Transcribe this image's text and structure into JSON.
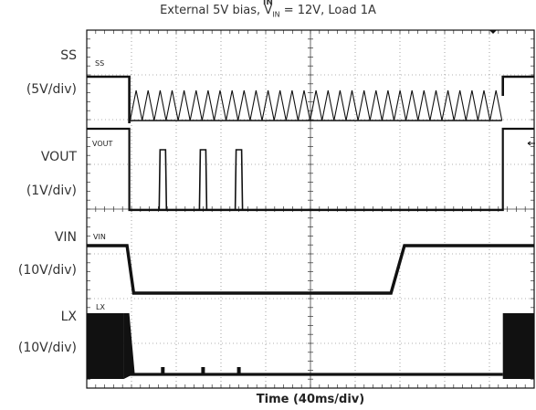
{
  "chart_data": {
    "type": "line",
    "title": "External 5V bias, V",
    "title_sub": "IN",
    "title_rest": " = 12V, Load 1A",
    "title_overline": "IN",
    "xlabel": "Time (40ms/div)",
    "x_divisions": 10,
    "y_divisions": 8,
    "grid": true,
    "channels": [
      {
        "name": "SS",
        "scale": "(5V/div)",
        "trace_label": "SS",
        "unit": "V"
      },
      {
        "name": "VOUT",
        "scale": "(1V/div)",
        "trace_label": "VOUT",
        "unit": "V"
      },
      {
        "name": "VIN",
        "scale": "(10V/div)",
        "trace_label": "VIN",
        "unit": "V"
      },
      {
        "name": "LX",
        "scale": "(10V/div)",
        "trace_label": "LX",
        "unit": "V"
      }
    ],
    "ss": {
      "x": [
        0,
        0.95,
        0.95,
        9.3,
        9.3,
        10
      ],
      "y": [
        5,
        5,
        0,
        0,
        5,
        5
      ],
      "ripple_between": [
        0.97,
        9.28
      ],
      "ripple_peak": 2.8
    },
    "vout": {
      "x": [
        0,
        0.95,
        0.95,
        9.3,
        9.3,
        10
      ],
      "y": [
        5,
        5,
        0,
        0,
        5,
        5
      ],
      "pulses_at": [
        1.7,
        2.6,
        3.4
      ]
    },
    "vin": {
      "x": [
        0,
        0.9,
        1.05,
        6.8,
        7.1,
        10
      ],
      "y": [
        12,
        12,
        0.8,
        0.8,
        12,
        12
      ]
    },
    "lx": {
      "burst_before": 0.95,
      "burst_after": 9.3,
      "switch_amplitude": 12
    }
  }
}
